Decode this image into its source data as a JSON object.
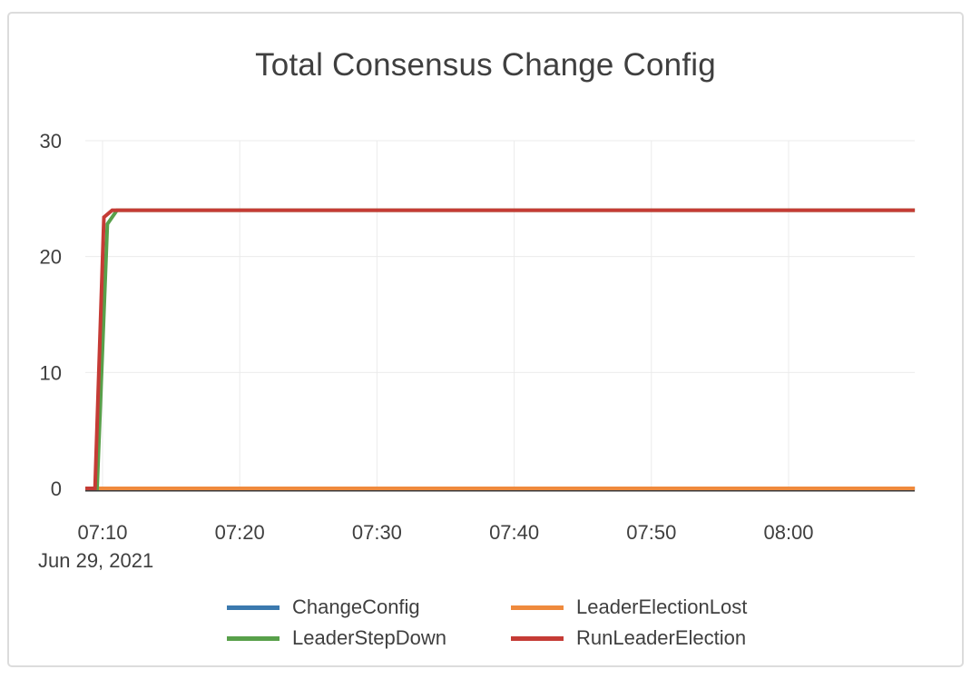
{
  "chart_data": {
    "type": "line",
    "title": "Total Consensus Change Config",
    "x_axis": {
      "date_label": "Jun 29, 2021",
      "unit": "time of day (HH:MM); point x-values are minutes after 07:00",
      "ticks": [
        {
          "t": 10,
          "label": "07:10"
        },
        {
          "t": 20,
          "label": "07:20"
        },
        {
          "t": 30,
          "label": "07:30"
        },
        {
          "t": 40,
          "label": "07:40"
        },
        {
          "t": 50,
          "label": "07:50"
        },
        {
          "t": 60,
          "label": "08:00"
        }
      ],
      "range_minutes": [
        8.75,
        69.2
      ]
    },
    "y_axis": {
      "ticks": [
        0,
        10,
        20,
        30
      ],
      "range": [
        0,
        30
      ]
    },
    "grid": true,
    "legend_position": "bottom",
    "series": [
      {
        "name": "ChangeConfig",
        "color": "#3b79ae",
        "steady_value": 0,
        "points": [
          [
            8.75,
            0
          ],
          [
            69.2,
            0
          ]
        ]
      },
      {
        "name": "LeaderElectionLost",
        "color": "#ef8a3d",
        "steady_value": 0,
        "points": [
          [
            8.75,
            0
          ],
          [
            69.2,
            0
          ]
        ]
      },
      {
        "name": "LeaderStepDown",
        "color": "#58a04a",
        "steady_value": 24,
        "points": [
          [
            8.75,
            0
          ],
          [
            9.6,
            0
          ],
          [
            10.35,
            22.8
          ],
          [
            11.05,
            24
          ],
          [
            69.2,
            24
          ]
        ]
      },
      {
        "name": "RunLeaderElection",
        "color": "#c53b35",
        "steady_value": 24,
        "points": [
          [
            8.75,
            0
          ],
          [
            9.45,
            0
          ],
          [
            10.1,
            23.4
          ],
          [
            10.7,
            24
          ],
          [
            69.2,
            24
          ]
        ]
      }
    ]
  }
}
